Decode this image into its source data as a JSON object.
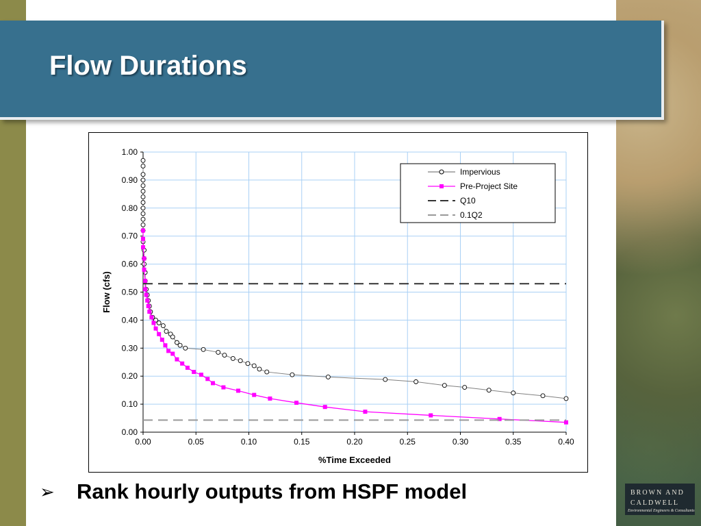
{
  "slide": {
    "title": "Flow Durations",
    "bullet_symbol": "➢",
    "bullet_text": "Rank hourly outputs from HSPF model",
    "logo_line1": "BROWN AND",
    "logo_line2": "CALDWELL",
    "logo_tagline": "Environmental Engineers & Consultants",
    "colors": {
      "header": "#37708e",
      "left_bar": "#8c8a4a"
    }
  },
  "chart_data": {
    "type": "line",
    "title": "",
    "xlabel": "%Time Exceeded",
    "ylabel": "Flow (cfs)",
    "xlim": [
      0,
      0.4
    ],
    "ylim": [
      0,
      1.0
    ],
    "xticks": [
      "0.00",
      "0.05",
      "0.10",
      "0.15",
      "0.20",
      "0.25",
      "0.30",
      "0.35",
      "0.40"
    ],
    "yticks": [
      "0.00",
      "0.10",
      "0.20",
      "0.30",
      "0.40",
      "0.50",
      "0.60",
      "0.70",
      "0.80",
      "0.90",
      "1.00"
    ],
    "grid": true,
    "legend_position": "top-right",
    "series": [
      {
        "name": "Impervious",
        "color": "#808080",
        "marker": "open-circle",
        "x": [
          0.0,
          0.0,
          0.0,
          0.0,
          0.0,
          0.0,
          0.0,
          0.0,
          0.0,
          0.0,
          0.0,
          0.0,
          0.0,
          0.0,
          0.001,
          0.001,
          0.001,
          0.002,
          0.002,
          0.003,
          0.004,
          0.005,
          0.006,
          0.007,
          0.009,
          0.012,
          0.015,
          0.019,
          0.022,
          0.026,
          0.028,
          0.032,
          0.035,
          0.04,
          0.057,
          0.071,
          0.077,
          0.085,
          0.092,
          0.099,
          0.105,
          0.11,
          0.117,
          0.141,
          0.175,
          0.229,
          0.258,
          0.285,
          0.304,
          0.327,
          0.35,
          0.378,
          0.4
        ],
        "y": [
          0.97,
          0.95,
          0.92,
          0.9,
          0.88,
          0.86,
          0.84,
          0.82,
          0.8,
          0.78,
          0.76,
          0.74,
          0.72,
          0.68,
          0.65,
          0.62,
          0.6,
          0.57,
          0.54,
          0.51,
          0.49,
          0.47,
          0.45,
          0.43,
          0.41,
          0.4,
          0.39,
          0.38,
          0.36,
          0.35,
          0.34,
          0.32,
          0.31,
          0.3,
          0.295,
          0.285,
          0.275,
          0.263,
          0.255,
          0.245,
          0.237,
          0.225,
          0.215,
          0.205,
          0.197,
          0.188,
          0.18,
          0.167,
          0.16,
          0.15,
          0.14,
          0.13,
          0.12
        ]
      },
      {
        "name": "Pre-Project Site",
        "color": "#ff00ff",
        "marker": "filled-square",
        "x": [
          0.0,
          0.0,
          0.0,
          0.001,
          0.001,
          0.002,
          0.002,
          0.003,
          0.004,
          0.005,
          0.006,
          0.008,
          0.01,
          0.012,
          0.015,
          0.018,
          0.021,
          0.024,
          0.028,
          0.032,
          0.037,
          0.042,
          0.048,
          0.055,
          0.061,
          0.066,
          0.076,
          0.09,
          0.105,
          0.12,
          0.145,
          0.172,
          0.21,
          0.272,
          0.337,
          0.4
        ],
        "y": [
          0.72,
          0.69,
          0.66,
          0.62,
          0.58,
          0.54,
          0.51,
          0.49,
          0.47,
          0.45,
          0.43,
          0.41,
          0.39,
          0.37,
          0.35,
          0.33,
          0.31,
          0.29,
          0.28,
          0.26,
          0.245,
          0.23,
          0.215,
          0.205,
          0.19,
          0.175,
          0.16,
          0.148,
          0.133,
          0.12,
          0.105,
          0.09,
          0.073,
          0.06,
          0.047,
          0.035
        ]
      },
      {
        "name": "Q10",
        "color": "#333333",
        "style": "dashed",
        "y": 0.53
      },
      {
        "name": "0.1Q2",
        "color": "#999999",
        "style": "dashed",
        "y": 0.043
      }
    ]
  }
}
